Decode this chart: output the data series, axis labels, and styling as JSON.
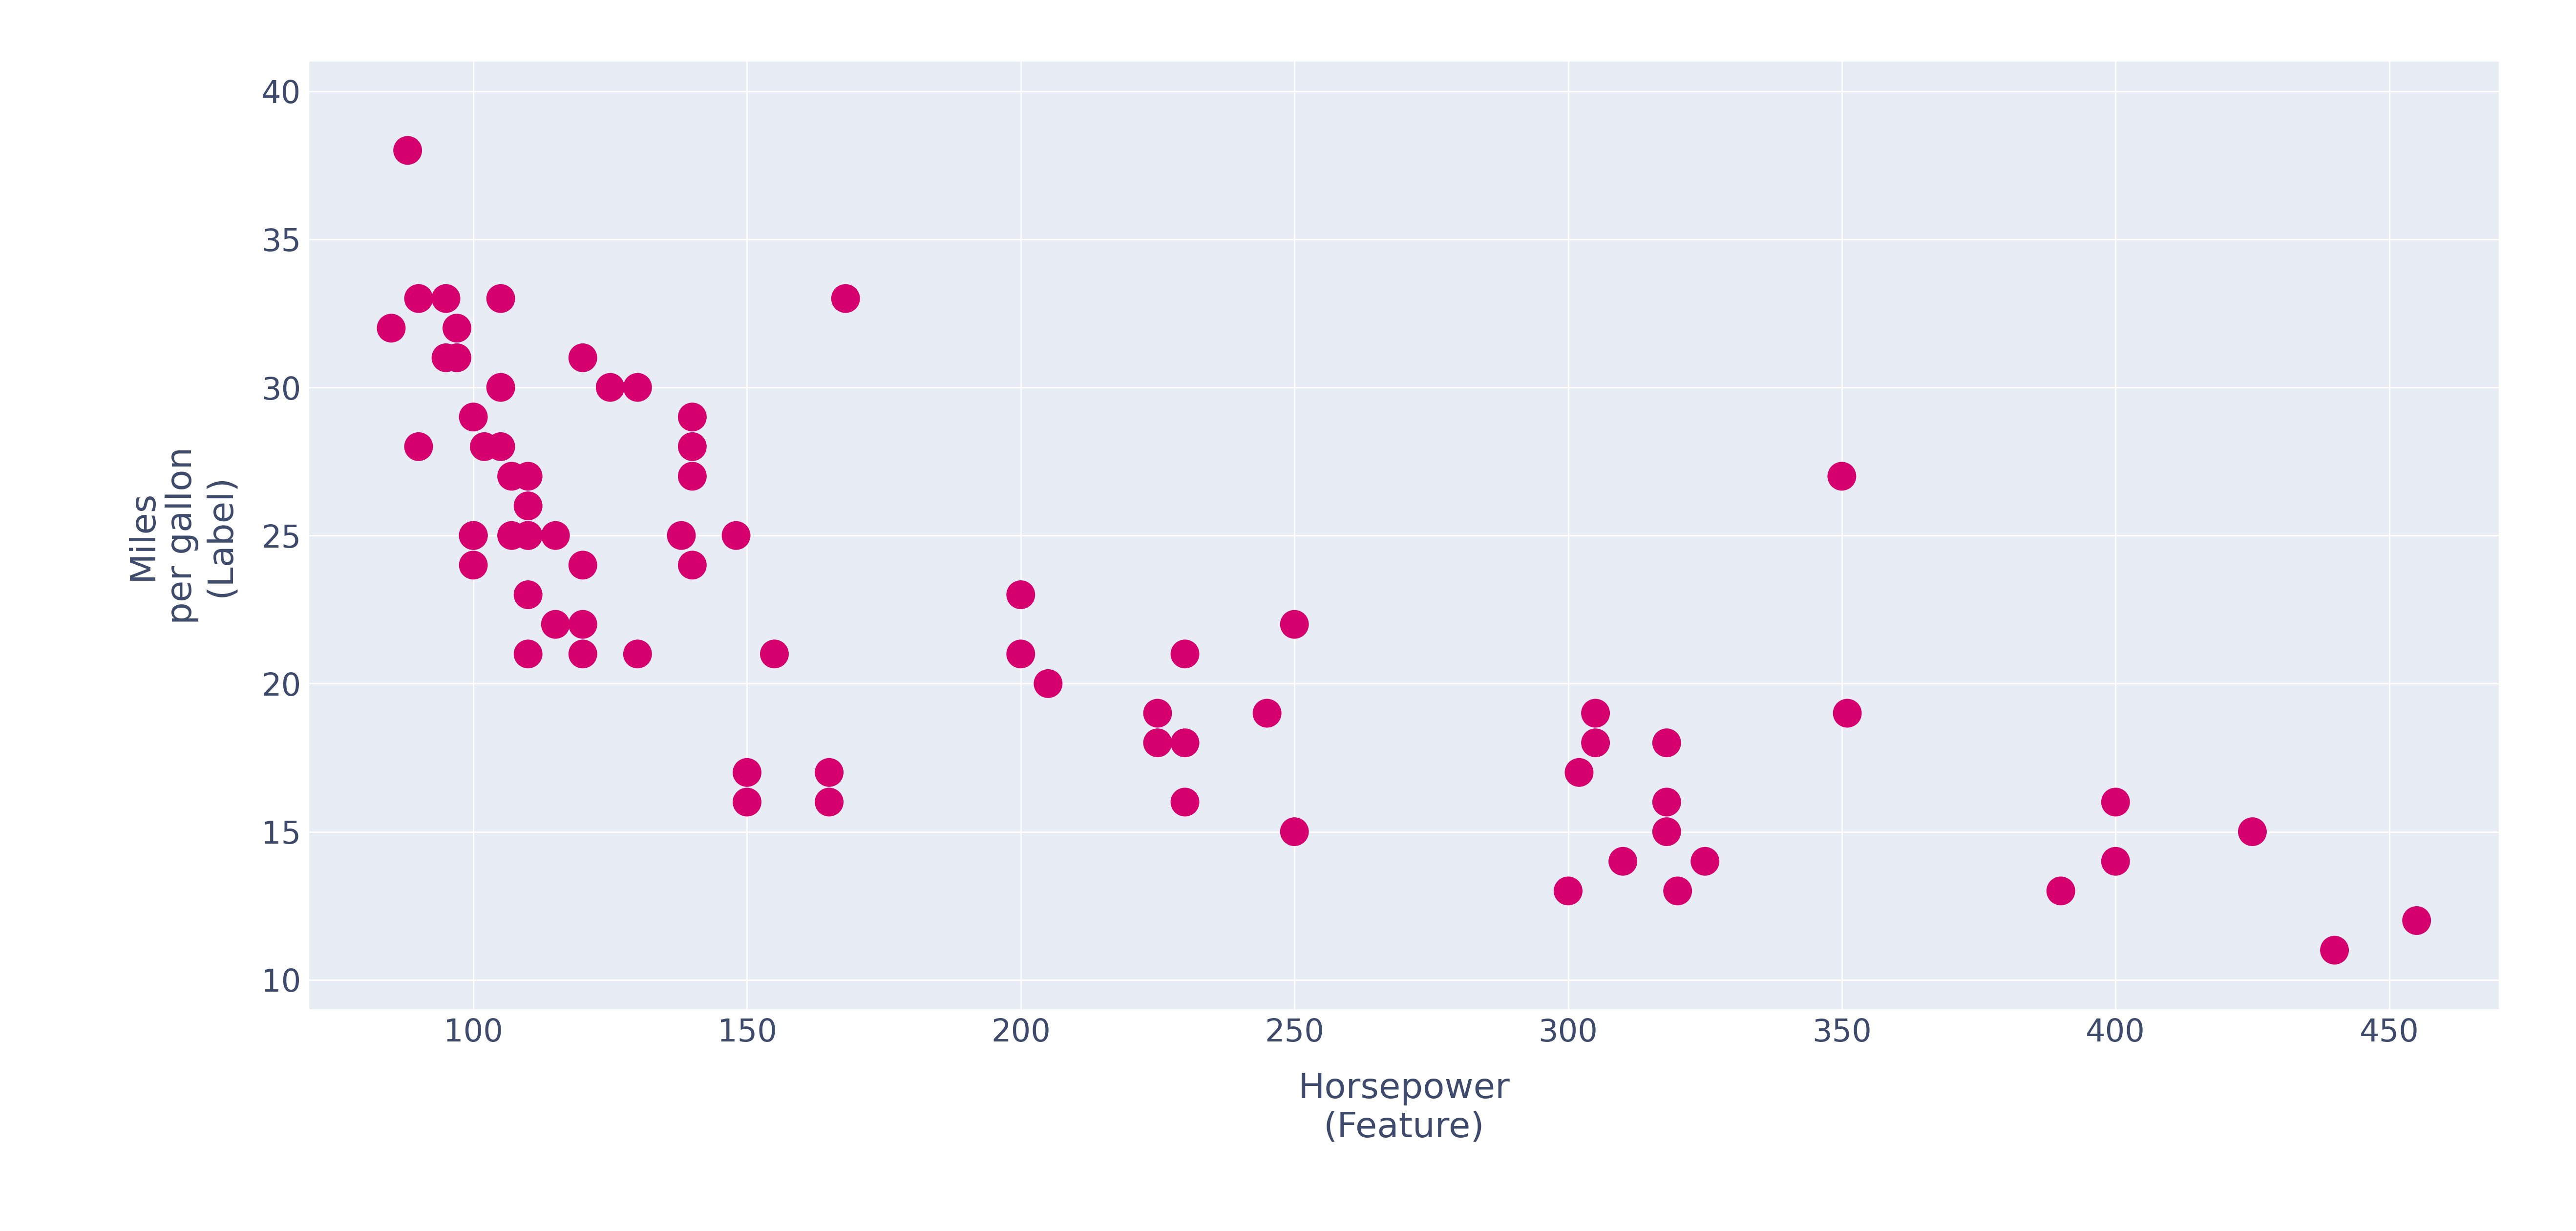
{
  "x": [
    85,
    88,
    90,
    90,
    95,
    95,
    97,
    97,
    100,
    100,
    100,
    100,
    102,
    105,
    105,
    105,
    107,
    107,
    110,
    110,
    110,
    110,
    110,
    110,
    115,
    115,
    120,
    120,
    120,
    120,
    125,
    130,
    130,
    138,
    140,
    140,
    140,
    140,
    148,
    150,
    150,
    155,
    165,
    165,
    168,
    200,
    200,
    205,
    225,
    225,
    230,
    230,
    230,
    245,
    250,
    250,
    300,
    302,
    305,
    305,
    310,
    318,
    318,
    318,
    320,
    325,
    350,
    351,
    390,
    400,
    400,
    425,
    440,
    455
  ],
  "y": [
    32,
    38,
    28,
    33,
    31,
    33,
    32,
    31,
    25,
    24,
    25,
    29,
    28,
    30,
    28,
    33,
    27,
    25,
    23,
    21,
    26,
    27,
    25,
    25,
    22,
    25,
    21,
    22,
    24,
    31,
    30,
    30,
    21,
    25,
    29,
    28,
    27,
    24,
    25,
    17,
    16,
    21,
    17,
    16,
    33,
    21,
    23,
    20,
    18,
    19,
    21,
    18,
    16,
    19,
    15,
    22,
    13,
    17,
    18,
    19,
    14,
    16,
    15,
    18,
    13,
    14,
    27,
    19,
    13,
    14,
    16,
    15,
    11,
    12
  ],
  "dot_color": "#d5006d",
  "dot_size": 1800,
  "bg_color": "#ffffff",
  "ax_bg_color": "#e8ecf5",
  "xlabel": "Horsepower\n(Feature)",
  "ylabel": "Miles\nper gallon\n(Label)",
  "xlim": [
    70,
    470
  ],
  "ylim": [
    9,
    41
  ],
  "xticks": [
    100,
    150,
    200,
    250,
    300,
    350,
    400,
    450
  ],
  "yticks": [
    10,
    15,
    20,
    25,
    30,
    35,
    40
  ],
  "xlabel_fontsize": 52,
  "ylabel_fontsize": 52,
  "tick_fontsize": 46,
  "grid": true,
  "grid_color": "#ffffff",
  "tick_color": "#3d4a6b",
  "label_color": "#3d4a6b"
}
